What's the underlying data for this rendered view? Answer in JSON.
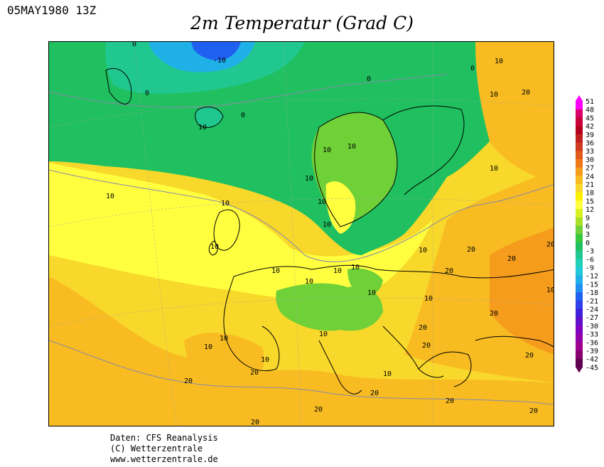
{
  "timestamp": "05MAY1980 13Z",
  "title": "2m Temperatur (Grad C)",
  "credits": {
    "line1": "Daten: CFS Reanalysis",
    "line2": "(C) Wetterzentrale",
    "line3": "www.wetterzentrale.de"
  },
  "contour_labels": {
    "minus10": "-10",
    "zero": "0",
    "ten": "10",
    "twenty": "20"
  },
  "legend": {
    "ticks": [
      "51",
      "48",
      "45",
      "42",
      "39",
      "36",
      "33",
      "30",
      "27",
      "24",
      "21",
      "18",
      "15",
      "12",
      "9",
      "6",
      "3",
      "0",
      "-3",
      "-6",
      "-9",
      "-12",
      "-15",
      "-18",
      "-21",
      "-24",
      "-27",
      "-30",
      "-33",
      "-36",
      "-39",
      "-42",
      "-45"
    ],
    "colors": [
      "#ff00ff",
      "#d8006a",
      "#c8003c",
      "#b4001e",
      "#c02020",
      "#d03a20",
      "#e05a1a",
      "#f07818",
      "#f59c1c",
      "#f8bc22",
      "#f8d82a",
      "#fcf000",
      "#ffff40",
      "#d8f020",
      "#a8e028",
      "#70d038",
      "#38c840",
      "#20c060",
      "#20c890",
      "#20d0b8",
      "#20c8d8",
      "#20b0e8",
      "#2090f0",
      "#2060f0",
      "#3040e8",
      "#4020d8",
      "#6010c8",
      "#8000c0",
      "#9000a8",
      "#a00090",
      "#880070",
      "#600050"
    ],
    "colors_note": "top to bottom"
  },
  "colors": {
    "cold_deep": "#2060f0",
    "cold": "#20c8d8",
    "cool": "#20c060",
    "mild": "#70d038",
    "green_light": "#a8e028",
    "yellow": "#ffff40",
    "yellow_orange": "#f8d82a",
    "orange": "#f8bc22",
    "orange_deep": "#f59c1c"
  }
}
